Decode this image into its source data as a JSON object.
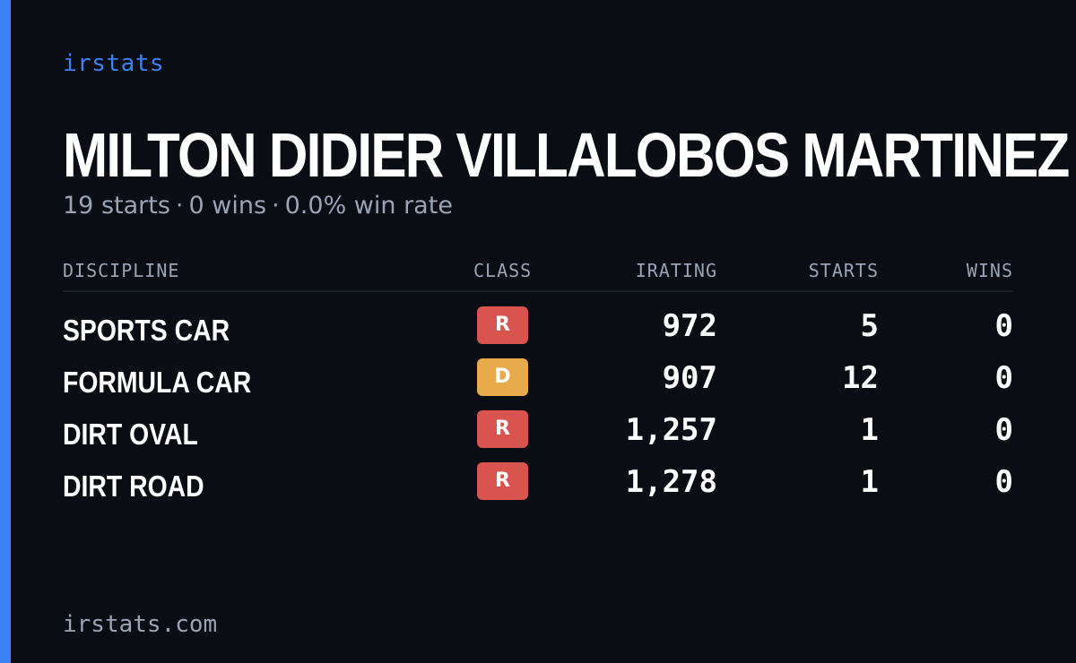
{
  "brand": "irstats",
  "driver": {
    "name": "MILTON DIDIER VILLALOBOS MARTINEZ"
  },
  "summary": {
    "starts": "19 starts",
    "wins": "0 wins",
    "win_rate": "0.0% win rate",
    "separator": "·"
  },
  "table": {
    "headers": {
      "discipline": "DISCIPLINE",
      "class": "CLASS",
      "irating": "IRATING",
      "starts": "STARTS",
      "wins": "WINS"
    },
    "rows": [
      {
        "discipline": "SPORTS CAR",
        "class": "R",
        "class_color": "#d9534f",
        "irating": "972",
        "starts": "5",
        "wins": "0"
      },
      {
        "discipline": "FORMULA CAR",
        "class": "D",
        "class_color": "#e8ab4c",
        "irating": "907",
        "starts": "12",
        "wins": "0"
      },
      {
        "discipline": "DIRT OVAL",
        "class": "R",
        "class_color": "#d9534f",
        "irating": "1,257",
        "starts": "1",
        "wins": "0"
      },
      {
        "discipline": "DIRT ROAD",
        "class": "R",
        "class_color": "#d9534f",
        "irating": "1,278",
        "starts": "1",
        "wins": "0"
      }
    ]
  },
  "footer": {
    "url": "irstats.com"
  },
  "colors": {
    "accent": "#3b82f6",
    "background": "#0a0d13",
    "muted_text": "#9aa4b6"
  }
}
